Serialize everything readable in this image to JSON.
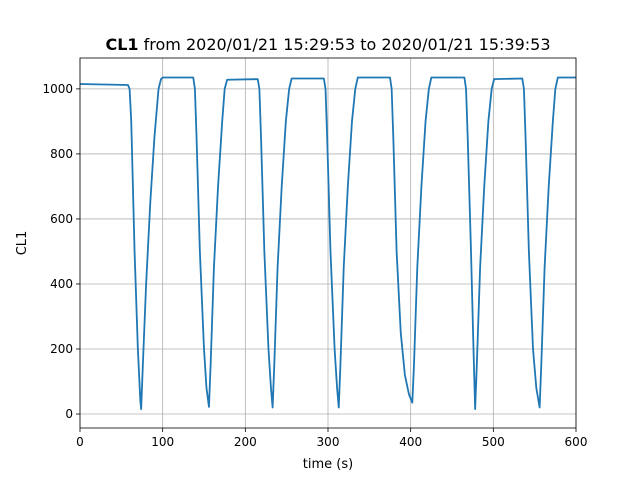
{
  "chart_data": {
    "type": "line",
    "title_bold": "CL1",
    "title_rest": "from 2020/01/21 15:29:53 to 2020/01/21 15:39:53",
    "xlabel": "time (s)",
    "ylabel": "CL1",
    "xlim": [
      0,
      600
    ],
    "ylim": [
      -43,
      1095
    ],
    "xticks": [
      0,
      100,
      200,
      300,
      400,
      500,
      600
    ],
    "yticks": [
      0,
      200,
      400,
      600,
      800,
      1000
    ],
    "grid": true,
    "series": [
      {
        "color": "#1f77b4",
        "x": [
          0,
          58,
          60,
          62,
          66,
          70,
          73,
          74,
          76,
          80,
          85,
          90,
          95,
          98,
          100,
          137,
          139,
          141,
          145,
          150,
          153,
          156,
          158,
          162,
          167,
          172,
          175,
          178,
          215,
          217,
          219,
          223,
          228,
          231,
          233,
          235,
          239,
          244,
          249,
          253,
          256,
          295,
          297,
          299,
          303,
          308,
          311,
          313,
          315,
          319,
          324,
          329,
          333,
          336,
          375,
          377,
          379,
          383,
          388,
          393,
          398,
          402,
          404,
          408,
          413,
          418,
          422,
          425,
          465,
          467,
          469,
          473,
          476,
          478,
          480,
          484,
          489,
          494,
          498,
          501,
          535,
          537,
          539,
          543,
          548,
          552,
          556,
          558,
          562,
          567,
          572,
          575,
          578,
          600
        ],
        "values": [
          1015,
          1012,
          1000,
          900,
          500,
          200,
          40,
          15,
          150,
          400,
          650,
          850,
          1000,
          1030,
          1035,
          1035,
          1000,
          850,
          500,
          200,
          80,
          22,
          150,
          450,
          700,
          900,
          1000,
          1028,
          1030,
          1000,
          850,
          500,
          200,
          80,
          20,
          150,
          450,
          700,
          900,
          1000,
          1032,
          1032,
          1000,
          850,
          500,
          200,
          80,
          20,
          150,
          450,
          700,
          900,
          1000,
          1035,
          1035,
          1000,
          850,
          500,
          250,
          120,
          60,
          35,
          150,
          450,
          700,
          900,
          1000,
          1035,
          1035,
          1000,
          850,
          500,
          200,
          15,
          150,
          450,
          700,
          900,
          1000,
          1030,
          1032,
          1000,
          850,
          500,
          200,
          80,
          20,
          150,
          450,
          700,
          900,
          1000,
          1035,
          1035
        ]
      }
    ]
  }
}
